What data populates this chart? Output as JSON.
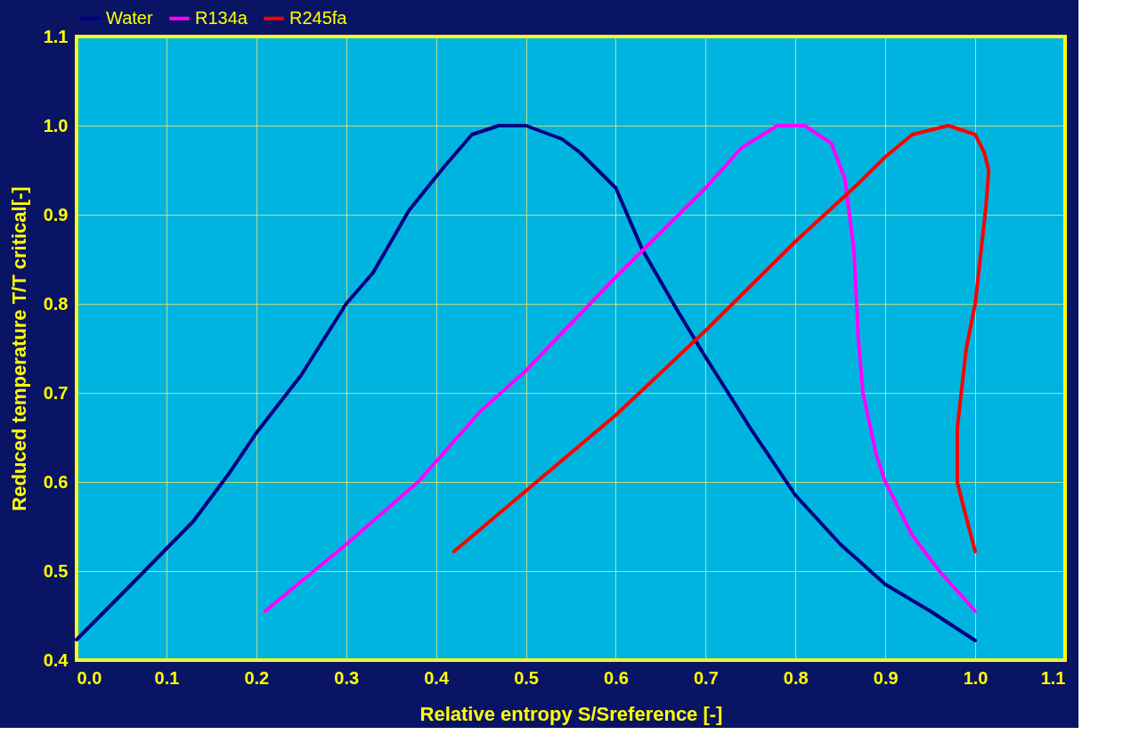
{
  "chart_data": {
    "type": "line",
    "xlabel": "Relative entropy S/Sreference [-]",
    "ylabel": "Reduced temperature T/T critical[-]",
    "xlim": [
      0.0,
      1.1
    ],
    "xticks": [
      {
        "value": 0,
        "label": "0.0"
      },
      0.1,
      0.2,
      0.3,
      0.4,
      0.5,
      0.6,
      0.7,
      0.8,
      0.9,
      {
        "value": 1,
        "label": "1.0"
      },
      1.1
    ],
    "ylim": [
      0.4,
      1.1
    ],
    "yticks": [
      0.4,
      0.5,
      0.6,
      0.7,
      0.8,
      0.9,
      {
        "value": 1,
        "label": "1.0"
      },
      1.1
    ],
    "grid": true,
    "legend": "top",
    "line_style": "solid",
    "marker": "none",
    "series": [
      {
        "name": "Water",
        "color": "#000080",
        "x": [
          0.0,
          0.06,
          0.13,
          0.17,
          0.2,
          0.25,
          0.3,
          0.33,
          0.37,
          0.41,
          0.44,
          0.47,
          0.5,
          0.54,
          0.56,
          0.6,
          0.63,
          0.67,
          0.7,
          0.75,
          0.8,
          0.85,
          0.9,
          0.95,
          1.0
        ],
        "values": [
          0.423,
          0.484,
          0.556,
          0.61,
          0.655,
          0.72,
          0.8,
          0.835,
          0.905,
          0.955,
          0.99,
          1.0,
          1.0,
          0.985,
          0.97,
          0.93,
          0.86,
          0.79,
          0.74,
          0.66,
          0.585,
          0.53,
          0.485,
          0.455,
          0.422
        ]
      },
      {
        "name": "R134a",
        "color": "#ff00ff",
        "x": [
          0.21,
          0.3,
          0.38,
          0.45,
          0.5,
          0.6,
          0.7,
          0.74,
          0.78,
          0.81,
          0.84,
          0.855,
          0.865,
          0.87,
          0.875,
          0.89,
          0.9,
          0.93,
          0.96,
          1.0
        ],
        "values": [
          0.455,
          0.53,
          0.6,
          0.68,
          0.725,
          0.83,
          0.93,
          0.975,
          1.0,
          1.0,
          0.98,
          0.94,
          0.86,
          0.76,
          0.7,
          0.63,
          0.6,
          0.54,
          0.5,
          0.455
        ]
      },
      {
        "name": "R245fa",
        "color": "#ff0000",
        "x": [
          0.42,
          0.5,
          0.6,
          0.7,
          0.8,
          0.87,
          0.9,
          0.93,
          0.97,
          1.0,
          1.01,
          1.015,
          1.012,
          1.0,
          0.99,
          0.98,
          0.98,
          0.99,
          1.0
        ],
        "values": [
          0.522,
          0.59,
          0.675,
          0.77,
          0.87,
          0.935,
          0.965,
          0.99,
          1.0,
          0.99,
          0.97,
          0.95,
          0.91,
          0.8,
          0.75,
          0.66,
          0.6,
          0.56,
          0.522
        ]
      }
    ]
  }
}
